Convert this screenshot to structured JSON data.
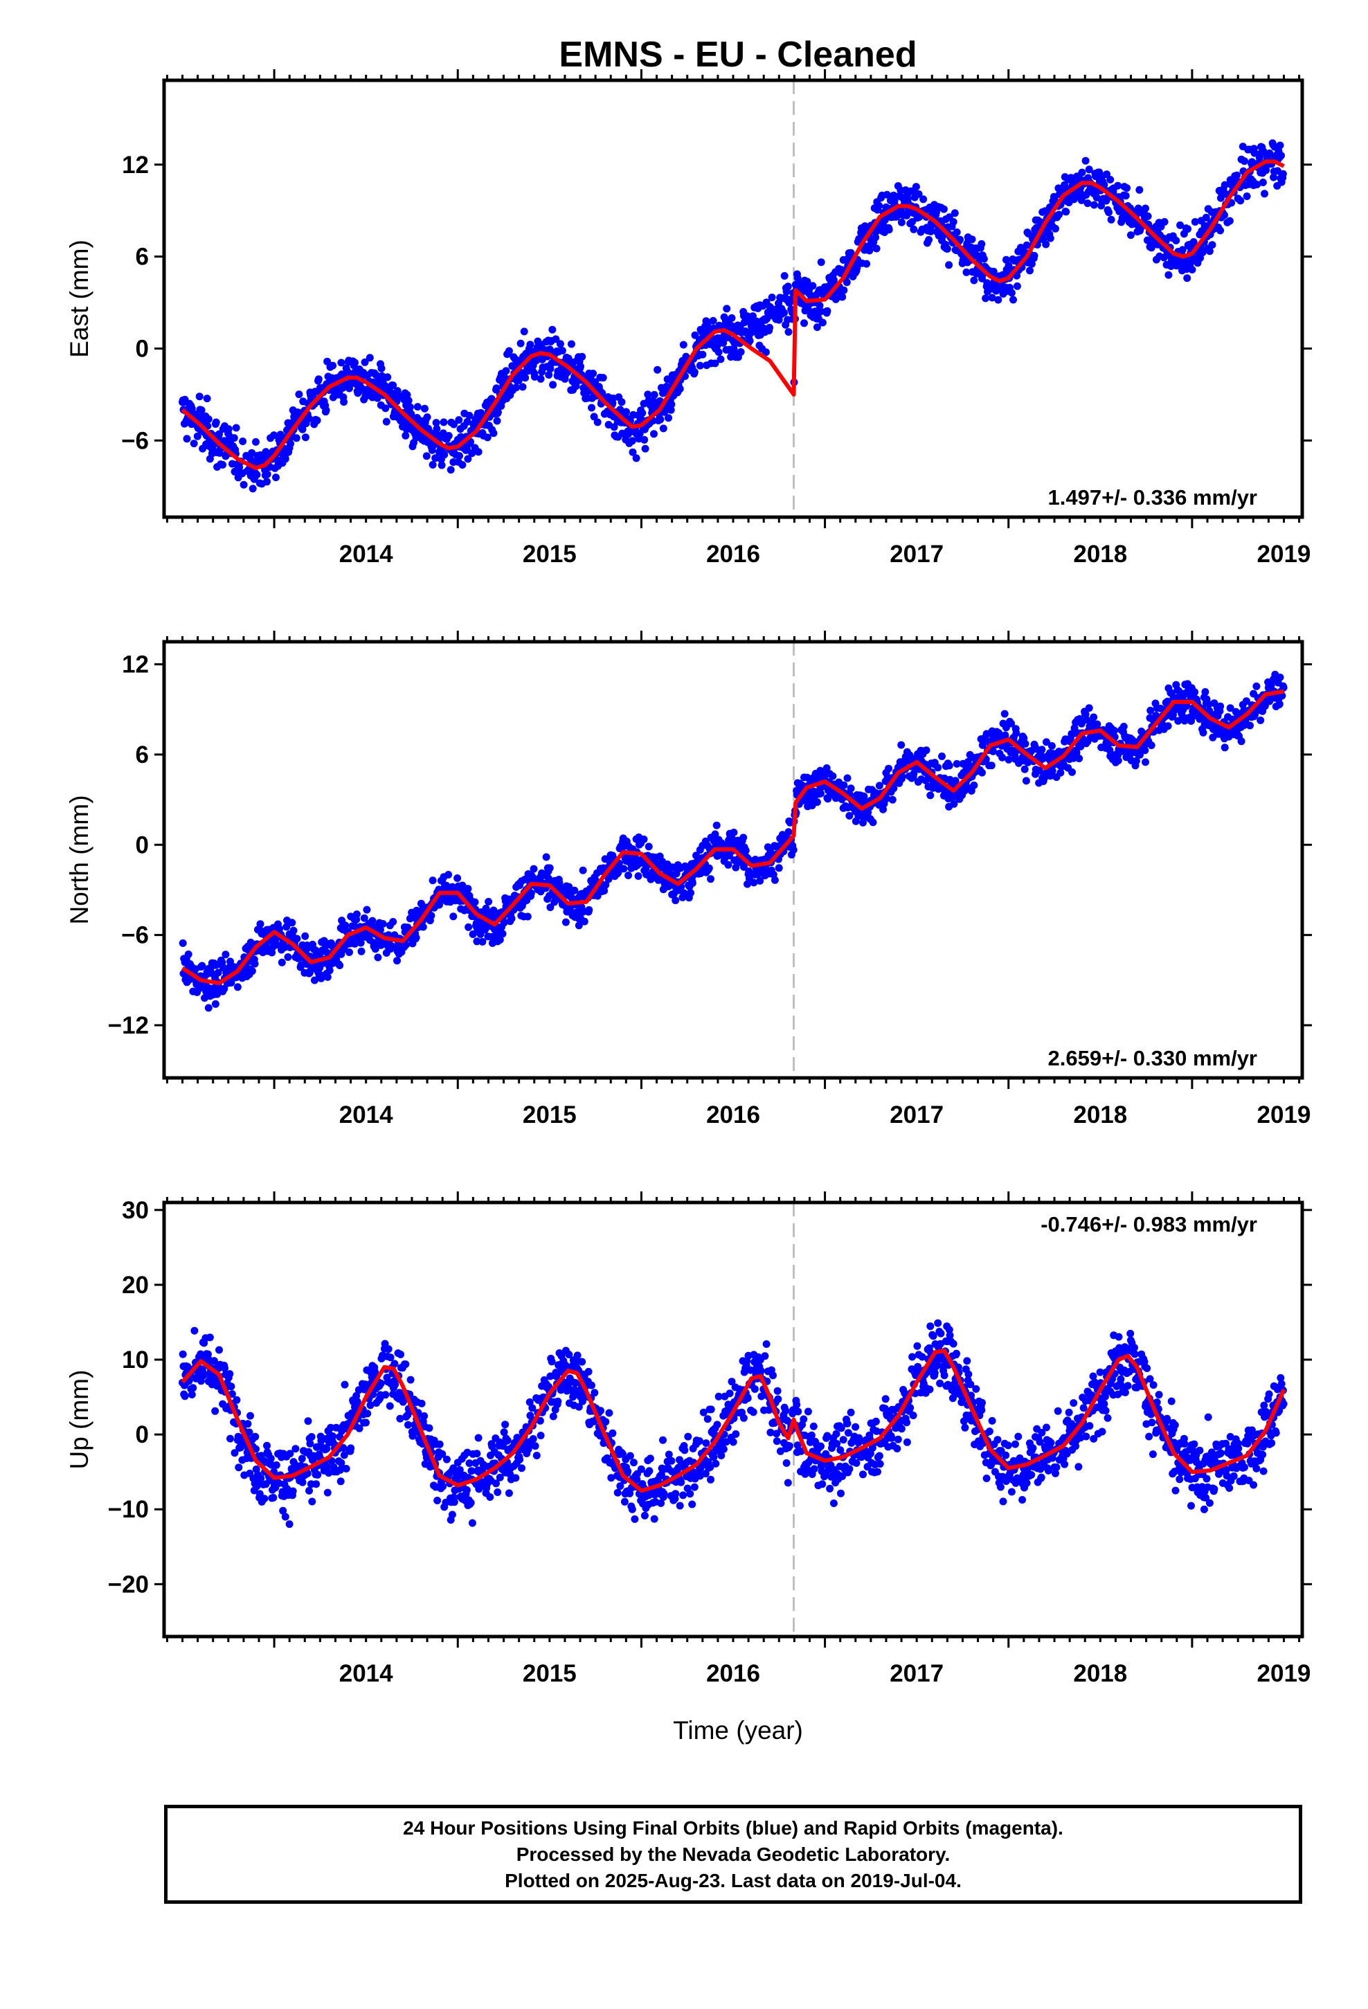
{
  "title": "EMNS  - EU - Cleaned",
  "xlabel": "Time (year)",
  "x_tick_labels": [
    "2014",
    "2015",
    "2016",
    "2017",
    "2018",
    "2019"
  ],
  "footer": {
    "line1": "24 Hour Positions Using Final Orbits (blue) and Rapid Orbits (magenta).",
    "line2": "Processed by the Nevada Geodetic Laboratory.",
    "line3": "Plotted on 2025-Aug-23. Last data on 2019-Jul-04."
  },
  "colors": {
    "points": "#0000ff",
    "model": "#ff0000",
    "event_line": "#c0c0c0",
    "frame": "#000000"
  },
  "chart_data": [
    {
      "type": "scatter",
      "title": "EMNS  - EU - Cleaned",
      "xlabel": "",
      "ylabel": "East (mm)",
      "xlim": [
        2013.4,
        2019.6
      ],
      "ylim": [
        -11.0,
        17.5
      ],
      "y_ticks": [
        -6,
        0,
        6,
        12
      ],
      "x_ticks": [
        2014,
        2015,
        2016,
        2017,
        2018,
        2019
      ],
      "event_line_x": 2016.83,
      "rate_text": "1.497+/- 0.336 mm/yr",
      "rate_position": "bottom-right",
      "series": [
        {
          "kind": "model",
          "x": [
            2013.5,
            2013.6,
            2013.7,
            2013.8,
            2013.9,
            2013.95,
            2014.0,
            2014.1,
            2014.2,
            2014.3,
            2014.4,
            2014.45,
            2014.5,
            2014.6,
            2014.7,
            2014.8,
            2014.9,
            2014.95,
            2015.0,
            2015.1,
            2015.2,
            2015.3,
            2015.4,
            2015.45,
            2015.5,
            2015.6,
            2015.7,
            2015.8,
            2015.9,
            2015.95,
            2016.0,
            2016.1,
            2016.2,
            2016.3,
            2016.4,
            2016.45,
            2016.5,
            2016.6,
            2016.7,
            2016.83,
            2016.84,
            2016.9,
            2017.0,
            2017.1,
            2017.2,
            2017.3,
            2017.4,
            2017.45,
            2017.5,
            2017.6,
            2017.7,
            2017.8,
            2017.9,
            2017.95,
            2018.0,
            2018.1,
            2018.2,
            2018.3,
            2018.4,
            2018.45,
            2018.5,
            2018.6,
            2018.7,
            2018.8,
            2018.9,
            2018.95,
            2019.0,
            2019.1,
            2019.2,
            2019.3,
            2019.4,
            2019.45,
            2019.5
          ],
          "y": [
            -4.0,
            -5.0,
            -6.2,
            -7.2,
            -7.8,
            -7.6,
            -7.0,
            -5.3,
            -3.7,
            -2.5,
            -1.9,
            -1.9,
            -2.2,
            -3.0,
            -4.2,
            -5.3,
            -6.2,
            -6.5,
            -6.4,
            -5.4,
            -3.6,
            -1.7,
            -0.5,
            -0.3,
            -0.4,
            -1.2,
            -2.2,
            -3.5,
            -4.6,
            -5.1,
            -5.0,
            -4.0,
            -2.0,
            0.0,
            1.1,
            1.2,
            0.9,
            0.0,
            -0.8,
            -3.0,
            3.8,
            3.1,
            3.2,
            4.6,
            6.8,
            8.6,
            9.3,
            9.3,
            9.1,
            8.3,
            7.1,
            5.8,
            4.7,
            4.4,
            4.6,
            6.0,
            8.2,
            10.0,
            10.8,
            10.8,
            10.5,
            9.6,
            8.5,
            7.3,
            6.2,
            6.0,
            6.2,
            7.8,
            9.8,
            11.5,
            12.2,
            12.2,
            11.9
          ]
        }
      ]
    },
    {
      "type": "scatter",
      "xlabel": "",
      "ylabel": "North (mm)",
      "xlim": [
        2013.4,
        2019.6
      ],
      "ylim": [
        -15.5,
        13.5
      ],
      "y_ticks": [
        -12,
        -6,
        0,
        6,
        12
      ],
      "x_ticks": [
        2014,
        2015,
        2016,
        2017,
        2018,
        2019
      ],
      "event_line_x": 2016.83,
      "rate_text": "2.659+/- 0.330 mm/yr",
      "rate_position": "bottom-right",
      "series": [
        {
          "kind": "model",
          "x": [
            2013.5,
            2013.6,
            2013.7,
            2013.8,
            2013.9,
            2014.0,
            2014.1,
            2014.2,
            2014.3,
            2014.4,
            2014.5,
            2014.6,
            2014.7,
            2014.8,
            2014.9,
            2015.0,
            2015.1,
            2015.2,
            2015.3,
            2015.4,
            2015.5,
            2015.6,
            2015.7,
            2015.8,
            2015.9,
            2016.0,
            2016.1,
            2016.2,
            2016.3,
            2016.4,
            2016.5,
            2016.6,
            2016.7,
            2016.83,
            2016.84,
            2016.9,
            2017.0,
            2017.1,
            2017.2,
            2017.3,
            2017.4,
            2017.5,
            2017.6,
            2017.7,
            2017.8,
            2017.9,
            2018.0,
            2018.1,
            2018.2,
            2018.3,
            2018.4,
            2018.5,
            2018.6,
            2018.7,
            2018.8,
            2018.9,
            2019.0,
            2019.1,
            2019.2,
            2019.3,
            2019.4,
            2019.5
          ],
          "y": [
            -8.2,
            -9.0,
            -9.2,
            -8.4,
            -6.8,
            -5.8,
            -6.6,
            -7.8,
            -7.5,
            -6.0,
            -5.5,
            -6.2,
            -6.4,
            -5.0,
            -3.2,
            -3.2,
            -4.6,
            -5.3,
            -4.0,
            -2.6,
            -2.7,
            -3.9,
            -3.8,
            -2.0,
            -0.5,
            -0.6,
            -1.9,
            -2.6,
            -1.6,
            -0.3,
            -0.3,
            -1.4,
            -1.2,
            0.6,
            2.8,
            3.8,
            4.2,
            3.4,
            2.4,
            3.1,
            4.8,
            5.5,
            4.5,
            3.6,
            4.8,
            6.6,
            7.0,
            6.0,
            5.1,
            5.9,
            7.4,
            7.6,
            6.6,
            6.5,
            8.0,
            9.5,
            9.5,
            8.4,
            7.8,
            8.7,
            10.0,
            10.2
          ]
        }
      ]
    },
    {
      "type": "scatter",
      "xlabel": "Time (year)",
      "ylabel": "Up (mm)",
      "xlim": [
        2013.4,
        2019.6
      ],
      "ylim": [
        -27.0,
        31.0
      ],
      "y_ticks": [
        -20,
        -10,
        0,
        10,
        20,
        30
      ],
      "x_ticks": [
        2014,
        2015,
        2016,
        2017,
        2018,
        2019
      ],
      "event_line_x": 2016.83,
      "rate_text": "-0.746+/- 0.983 mm/yr",
      "rate_position": "top-right",
      "series": [
        {
          "kind": "model",
          "x": [
            2013.5,
            2013.6,
            2013.7,
            2013.8,
            2013.9,
            2014.0,
            2014.1,
            2014.2,
            2014.3,
            2014.4,
            2014.5,
            2014.6,
            2014.65,
            2014.7,
            2014.8,
            2014.9,
            2015.0,
            2015.1,
            2015.2,
            2015.3,
            2015.4,
            2015.5,
            2015.6,
            2015.65,
            2015.7,
            2015.8,
            2015.9,
            2016.0,
            2016.1,
            2016.2,
            2016.3,
            2016.4,
            2016.5,
            2016.6,
            2016.65,
            2016.7,
            2016.75,
            2016.8,
            2016.83,
            2016.85,
            2016.9,
            2017.0,
            2017.1,
            2017.2,
            2017.3,
            2017.4,
            2017.5,
            2017.6,
            2017.65,
            2017.7,
            2017.8,
            2017.9,
            2018.0,
            2018.1,
            2018.2,
            2018.3,
            2018.4,
            2018.5,
            2018.6,
            2018.65,
            2018.7,
            2018.8,
            2018.9,
            2019.0,
            2019.1,
            2019.2,
            2019.3,
            2019.4,
            2019.5
          ],
          "y": [
            7.0,
            9.8,
            8.0,
            2.0,
            -3.5,
            -5.8,
            -5.5,
            -4.3,
            -3.0,
            0.0,
            5.0,
            9.0,
            8.8,
            6.5,
            0.5,
            -5.5,
            -6.8,
            -6.0,
            -4.5,
            -2.5,
            1.0,
            5.5,
            8.5,
            8.2,
            5.8,
            0.0,
            -5.5,
            -7.5,
            -6.8,
            -5.5,
            -4.0,
            -1.0,
            3.0,
            7.5,
            7.8,
            5.0,
            1.5,
            -0.5,
            2.0,
            0.5,
            -2.5,
            -3.5,
            -3.0,
            -1.8,
            -0.5,
            2.5,
            7.0,
            11.0,
            11.2,
            9.0,
            3.5,
            -2.0,
            -4.5,
            -4.0,
            -2.8,
            -1.5,
            1.5,
            6.0,
            10.0,
            10.5,
            9.0,
            3.0,
            -2.5,
            -5.0,
            -4.8,
            -3.8,
            -2.8,
            0.5,
            6.0
          ]
        }
      ]
    }
  ]
}
